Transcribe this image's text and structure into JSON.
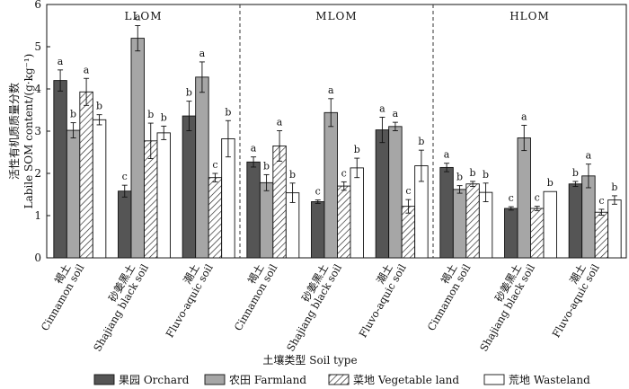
{
  "chart_data": {
    "type": "bar",
    "ylabel": [
      "活性有机质质量分数",
      "Labile SOM content/(g·kg⁻¹)"
    ],
    "xlabel": "土壤类型 Soil type",
    "ylim": [
      0,
      6
    ],
    "yticks": [
      0,
      1,
      2,
      3,
      4,
      5,
      6
    ],
    "panels": [
      "LLOM",
      "MLOM",
      "HLOM"
    ],
    "categories": [
      {
        "zh": "褐土",
        "en": "Cinnamon soil"
      },
      {
        "zh": "砂姜黑土",
        "en": "Shajiang black soil"
      },
      {
        "zh": "潮土",
        "en": "Fluvo-aquic soil"
      }
    ],
    "series": [
      {
        "name": "果园 Orchard",
        "color": "#555555",
        "pattern": "solid"
      },
      {
        "name": "农田 Farmland",
        "color": "#a6a6a6",
        "pattern": "solid"
      },
      {
        "name": "菜地 Vegetable land",
        "color": "#ffffff",
        "pattern": "hatch"
      },
      {
        "name": "荒地 Wasteland",
        "color": "#ffffff",
        "pattern": "none"
      }
    ],
    "values": [
      [
        [
          4.2,
          3.02,
          3.93,
          3.27
        ],
        [
          1.58,
          5.2,
          2.77,
          2.96
        ],
        [
          3.36,
          4.28,
          1.9,
          2.82
        ]
      ],
      [
        [
          2.27,
          1.78,
          2.65,
          1.54
        ],
        [
          1.33,
          3.44,
          1.7,
          2.13
        ],
        [
          3.03,
          3.11,
          1.22,
          2.18
        ]
      ],
      [
        [
          2.14,
          1.62,
          1.75,
          1.55
        ],
        [
          1.17,
          2.84,
          1.17,
          1.57
        ],
        [
          1.75,
          1.94,
          1.08,
          1.37
        ]
      ]
    ],
    "errors": [
      [
        [
          0.25,
          0.18,
          0.32,
          0.12
        ],
        [
          0.14,
          0.3,
          0.42,
          0.16
        ],
        [
          0.35,
          0.36,
          0.1,
          0.43
        ]
      ],
      [
        [
          0.12,
          0.19,
          0.36,
          0.23
        ],
        [
          0.04,
          0.33,
          0.1,
          0.23
        ],
        [
          0.3,
          0.1,
          0.16,
          0.37
        ]
      ],
      [
        [
          0.1,
          0.09,
          0.06,
          0.22
        ],
        [
          0.04,
          0.3,
          0.05,
          0.0
        ],
        [
          0.06,
          0.28,
          0.07,
          0.1
        ]
      ]
    ],
    "letters": [
      [
        [
          "a",
          "b",
          "a",
          "b"
        ],
        [
          "c",
          "a",
          "b",
          "b"
        ],
        [
          "b",
          "a",
          "c",
          "b"
        ]
      ],
      [
        [
          "a",
          "b",
          "a",
          "b"
        ],
        [
          "c",
          "a",
          "c",
          "b"
        ],
        [
          "a",
          "a",
          "c",
          "b"
        ]
      ],
      [
        [
          "a",
          "b",
          "b",
          "b"
        ],
        [
          "c",
          "a",
          "c",
          "b"
        ],
        [
          "b",
          "a",
          "c",
          "b"
        ]
      ]
    ]
  }
}
